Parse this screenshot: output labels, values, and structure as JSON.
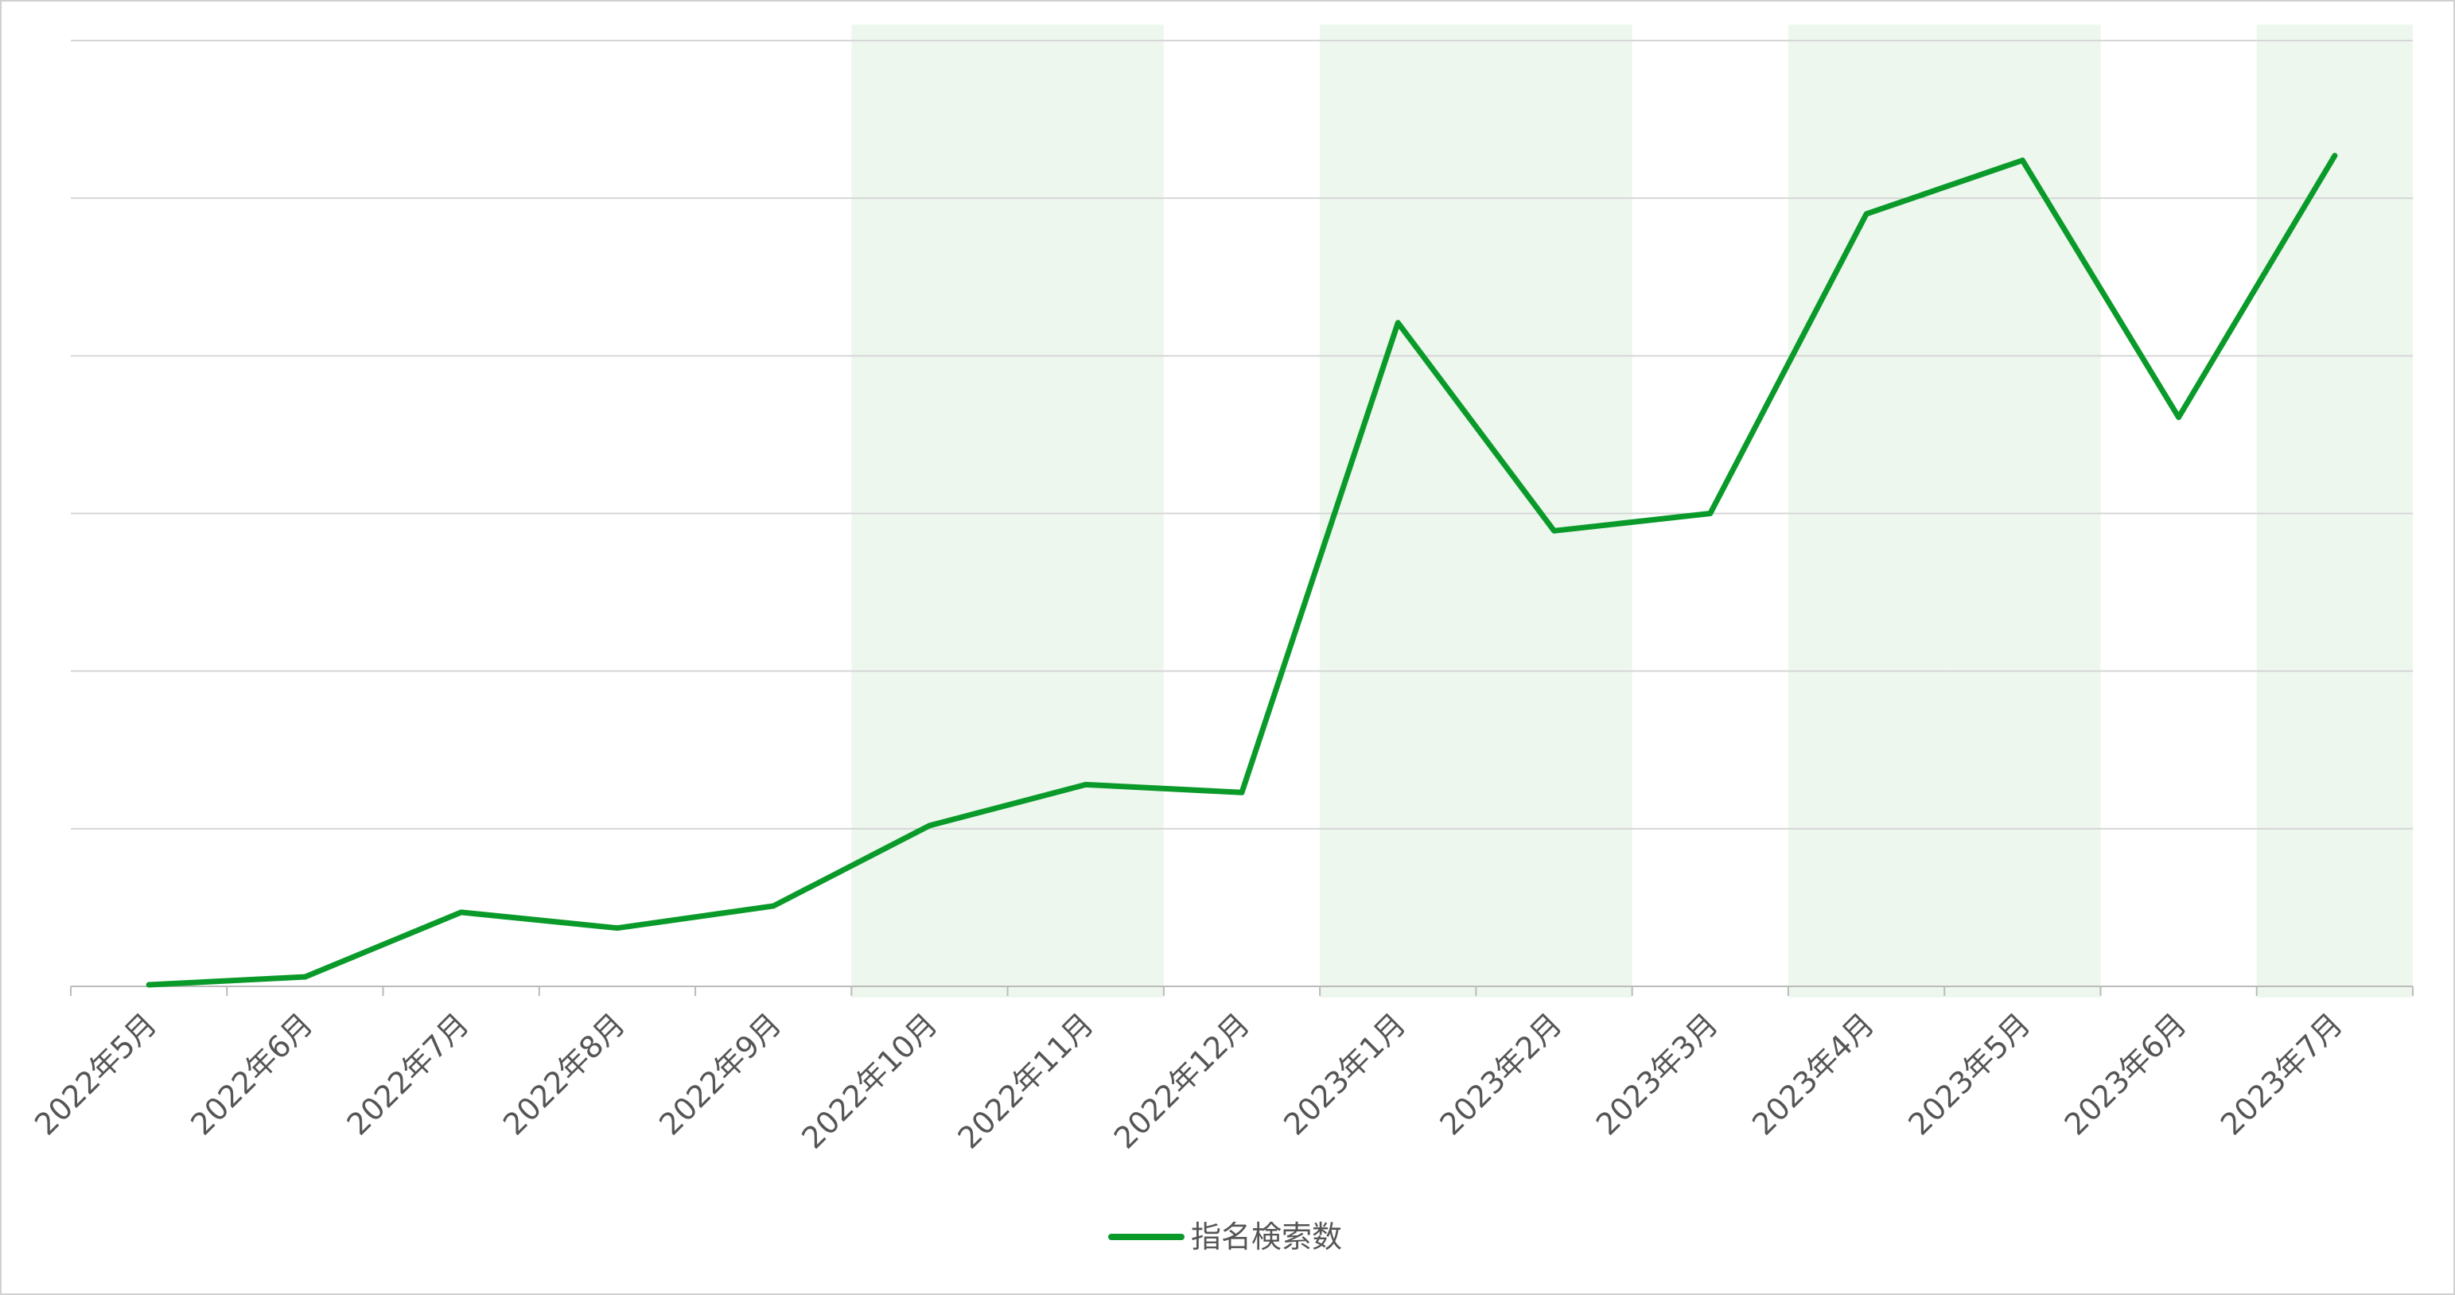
{
  "chart_data": {
    "type": "line",
    "categories": [
      "2022年5月",
      "2022年6月",
      "2022年7月",
      "2022年8月",
      "2022年9月",
      "2022年10月",
      "2022年11月",
      "2022年12月",
      "2023年1月",
      "2023年2月",
      "2023年3月",
      "2023年4月",
      "2023年5月",
      "2023年6月",
      "2023年7月"
    ],
    "series": [
      {
        "name": "指名検索数",
        "color": "#0a9a2a",
        "values": [
          0.01,
          0.06,
          0.47,
          0.37,
          0.51,
          1.02,
          1.28,
          1.23,
          4.21,
          2.89,
          3.0,
          4.9,
          5.24,
          3.61,
          5.27
        ]
      }
    ],
    "highlighted_categories": [
      5,
      6,
      8,
      9,
      11,
      12,
      14
    ],
    "highlight_color": "#edf7ee",
    "ylim": [
      0,
      6
    ],
    "yticks": [
      0,
      1,
      2,
      3,
      4,
      5,
      6
    ],
    "grid": true,
    "legend": "bottom"
  }
}
